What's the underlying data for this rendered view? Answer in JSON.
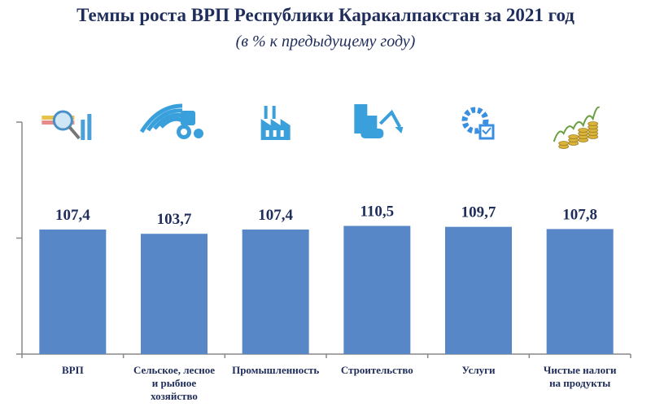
{
  "chart_data": {
    "type": "bar",
    "title": "Темпы роста ВРП Республики Каракалпакстан за 2021 год",
    "subtitle": "(в % к предыдущему году)",
    "categories": [
      "ВРП",
      "Сельское, лесное и рыбное хозяйство",
      "Промышленность",
      "Строительство",
      "Услуги",
      "Чистые налоги на продукты"
    ],
    "category_lines": [
      [
        "ВРП"
      ],
      [
        "Сельское, лесное",
        "и  рыбное",
        "хозяйство"
      ],
      [
        "Промышленность"
      ],
      [
        "Строительство"
      ],
      [
        "Услуги"
      ],
      [
        "Чистые налоги",
        "на продукты"
      ]
    ],
    "values": [
      107.4,
      103.7,
      107.4,
      110.5,
      109.7,
      107.8
    ],
    "data_labels": [
      "107,4",
      "103,7",
      "107,4",
      "110,5",
      "109,7",
      "107,8"
    ],
    "icons": [
      "magnifier-chart-icon",
      "tractor-field-icon",
      "factory-icon",
      "excavator-building-icon",
      "gear-checklist-icon",
      "coins-growth-icon"
    ],
    "xlabel": "",
    "ylabel": "",
    "ylim": [
      0,
      200
    ],
    "y_ticks": [
      0,
      100,
      200
    ],
    "y_tick_labels_shown": false,
    "grid": false,
    "legend": "none",
    "bar_color": "#5787c6",
    "text_color": "#1f2d5a"
  }
}
